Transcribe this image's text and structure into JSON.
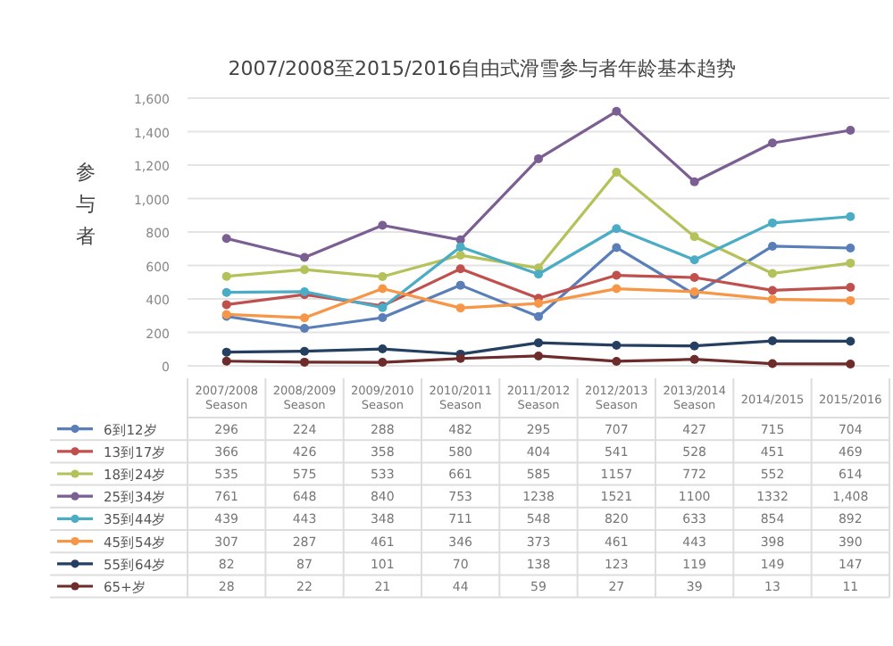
{
  "chart_data": {
    "type": "line",
    "title": "2007/2008至2015/2016自由式滑雪参与者年龄基本趋势",
    "ylabel": "参与者",
    "categories": [
      "2007/2008 Season",
      "2008/2009 Season",
      "2009/2010 Season",
      "2010/2011 Season",
      "2011/2012 Season",
      "2012/2013 Season",
      "2013/2014 Season",
      "2014/2015",
      "2015/2016"
    ],
    "ylim": [
      0,
      1600
    ],
    "yticks": [
      0,
      {
        "value": 200,
        "label": "200"
      },
      {
        "value": 400,
        "label": "400"
      },
      {
        "value": 600,
        "label": "600"
      },
      {
        "value": 800,
        "label": "800"
      },
      {
        "value": 1000,
        "label": "1,000"
      },
      {
        "value": 1200,
        "label": "1,200"
      },
      {
        "value": 1400,
        "label": "1,400"
      },
      {
        "value": 1600,
        "label": "1,600"
      }
    ],
    "grid": "y",
    "legend": "bottom",
    "marker": "circle",
    "line_style": "solid",
    "series": [
      {
        "name": "6到12岁",
        "color": "#5a7fb8",
        "values": [
          296,
          224,
          288,
          482,
          295,
          707,
          427,
          715,
          704
        ],
        "value_labels": [
          "296",
          "224",
          "288",
          "482",
          "295",
          "707",
          "427",
          "715",
          "704"
        ]
      },
      {
        "name": "13到17岁",
        "color": "#c0504d",
        "values": [
          366,
          426,
          358,
          580,
          404,
          541,
          528,
          451,
          469
        ],
        "value_labels": [
          "366",
          "426",
          "358",
          "580",
          "404",
          "541",
          "528",
          "451",
          "469"
        ]
      },
      {
        "name": "18到24岁",
        "color": "#b5c25a",
        "values": [
          535,
          575,
          533,
          661,
          585,
          1157,
          772,
          552,
          614
        ],
        "value_labels": [
          "535",
          "575",
          "533",
          "661",
          "585",
          "1157",
          "772",
          "552",
          "614"
        ]
      },
      {
        "name": "25到34岁",
        "color": "#7b5f93",
        "values": [
          761,
          648,
          840,
          753,
          1238,
          1521,
          1100,
          1332,
          1408
        ],
        "value_labels": [
          "761",
          "648",
          "840",
          "753",
          "1238",
          "1521",
          "1100",
          "1332",
          "1,408"
        ]
      },
      {
        "name": "35到44岁",
        "color": "#4bacc6",
        "values": [
          439,
          443,
          348,
          711,
          548,
          820,
          633,
          854,
          892
        ],
        "value_labels": [
          "439",
          "443",
          "348",
          "711",
          "548",
          "820",
          "633",
          "854",
          "892"
        ]
      },
      {
        "name": "45到54岁",
        "color": "#f79646",
        "values": [
          307,
          287,
          461,
          346,
          373,
          461,
          443,
          398,
          390
        ],
        "value_labels": [
          "307",
          "287",
          "461",
          "346",
          "373",
          "461",
          "443",
          "398",
          "390"
        ]
      },
      {
        "name": "55到64岁",
        "color": "#243f60",
        "values": [
          82,
          87,
          101,
          70,
          138,
          123,
          119,
          149,
          147
        ],
        "value_labels": [
          "82",
          "87",
          "101",
          "70",
          "138",
          "123",
          "119",
          "149",
          "147"
        ]
      },
      {
        "name": "65+岁",
        "color": "#6e2b2b",
        "values": [
          28,
          22,
          21,
          44,
          59,
          27,
          39,
          13,
          11
        ],
        "value_labels": [
          "28",
          "22",
          "21",
          "44",
          "59",
          "27",
          "39",
          "13",
          "11"
        ]
      }
    ]
  }
}
